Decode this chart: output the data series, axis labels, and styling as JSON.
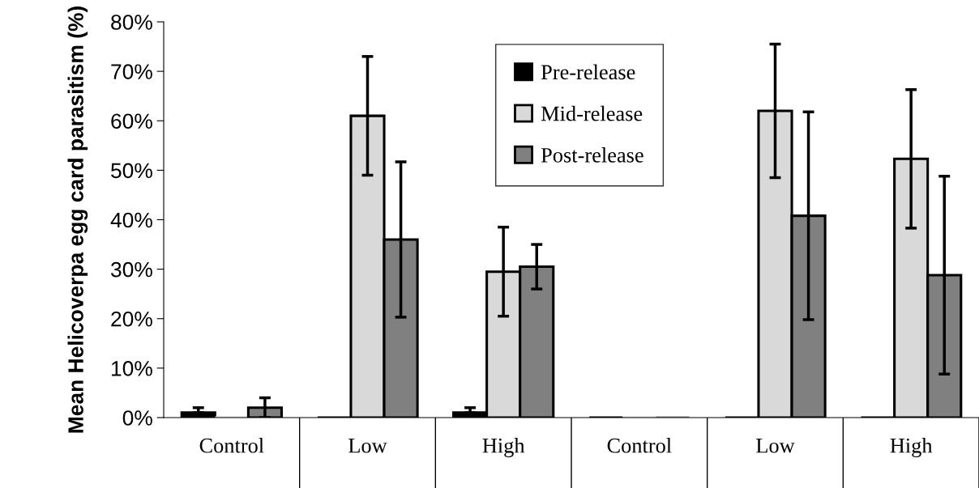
{
  "chart_data": {
    "type": "bar",
    "ylabel": "Mean Helicoverpa egg card parasitism (%)",
    "categories": [
      "Control",
      "Low",
      "High",
      "Control",
      "Low",
      "High"
    ],
    "series": [
      {
        "name": "Pre-release",
        "color": "#000000",
        "values": [
          1,
          0,
          1,
          0,
          0,
          0
        ],
        "errors": [
          [
            1,
            2
          ],
          null,
          [
            1,
            2
          ],
          null,
          null,
          null
        ]
      },
      {
        "name": "Mid-release",
        "color": "#d9d9d9",
        "values": [
          0,
          61,
          29.5,
          0,
          62,
          52.3
        ],
        "errors": [
          null,
          12,
          9,
          null,
          13.5,
          14
        ]
      },
      {
        "name": "Post-release",
        "color": "#808080",
        "values": [
          2,
          36,
          30.5,
          0,
          40.8,
          28.8
        ],
        "errors": [
          2,
          15.7,
          4.5,
          null,
          21,
          20
        ]
      }
    ],
    "ylim": [
      0,
      80
    ],
    "yticks": [
      {
        "value": 0,
        "label": "0%"
      },
      {
        "value": 10,
        "label": "10%"
      },
      {
        "value": 20,
        "label": "20%"
      },
      {
        "value": 30,
        "label": "30%"
      },
      {
        "value": 40,
        "label": "40%"
      },
      {
        "value": 50,
        "label": "50%"
      },
      {
        "value": 60,
        "label": "60%"
      },
      {
        "value": 70,
        "label": "70%"
      },
      {
        "value": 80,
        "label": "80%"
      }
    ],
    "grid": false,
    "legend": "top"
  }
}
